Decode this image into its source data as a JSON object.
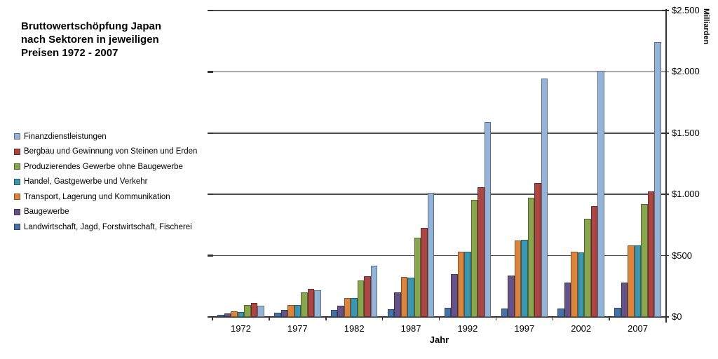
{
  "title": {
    "text": "Bruttowertschöpfung Japan\nnach Sektoren in jeweiligen\nPreisen 1972 - 2007"
  },
  "chart_data": {
    "type": "bar",
    "title": "Bruttowertschöpfung Japan nach Sektoren in jeweiligen Preisen 1972 - 2007",
    "xlabel": "Jahr",
    "ylabel": "Milliarden",
    "categories": [
      "1972",
      "1977",
      "1982",
      "1987",
      "1992",
      "1997",
      "2002",
      "2007"
    ],
    "ylim": [
      0,
      2500
    ],
    "grid": true,
    "legend_position": "left",
    "currency_unit": "$ Milliarden",
    "y_ticks": [
      {
        "value": 0,
        "label": "$0"
      },
      {
        "value": 500,
        "label": "$500"
      },
      {
        "value": 1000,
        "label": "$1.000"
      },
      {
        "value": 1500,
        "label": "$1.500"
      },
      {
        "value": 2000,
        "label": "$2.000"
      },
      {
        "value": 2500,
        "label": "$2.500"
      }
    ],
    "series_note": "series listed in legend order (top to bottom); bars within each year group are drawn in reverse of this order, left to right",
    "series": [
      {
        "name": "Finanzdienstleistungen",
        "color": "#95B3D7",
        "values": [
          91,
          219,
          419,
          1015,
          1590,
          1945,
          2010,
          2245
        ]
      },
      {
        "name": "Bergbau und Gewinnung von Steinen und Erden",
        "color": "#AA4643",
        "values": [
          114,
          229,
          333,
          724,
          1060,
          1090,
          905,
          1025
        ]
      },
      {
        "name": "Produzierendes Gewerbe ohne Baugewerbe",
        "color": "#89A54E",
        "values": [
          97,
          200,
          299,
          645,
          953,
          970,
          800,
          920
        ]
      },
      {
        "name": "Handel, Gastgewerbe und Verkehr",
        "color": "#3D96AE",
        "values": [
          40,
          95,
          152,
          318,
          534,
          629,
          528,
          581
        ]
      },
      {
        "name": "Transport, Lagerung und Kommunikation",
        "color": "#DB843D",
        "values": [
          45,
          99,
          156,
          324,
          530,
          625,
          534,
          585
        ]
      },
      {
        "name": "Baugewerbe",
        "color": "#655287",
        "values": [
          29,
          57,
          93,
          200,
          349,
          335,
          283,
          280
        ]
      },
      {
        "name": "Landwirtschaft, Jagd, Forstwirtschaft, Fischerei",
        "color": "#4572A7",
        "values": [
          15,
          33,
          60,
          62,
          77,
          71,
          67,
          73
        ]
      }
    ]
  }
}
